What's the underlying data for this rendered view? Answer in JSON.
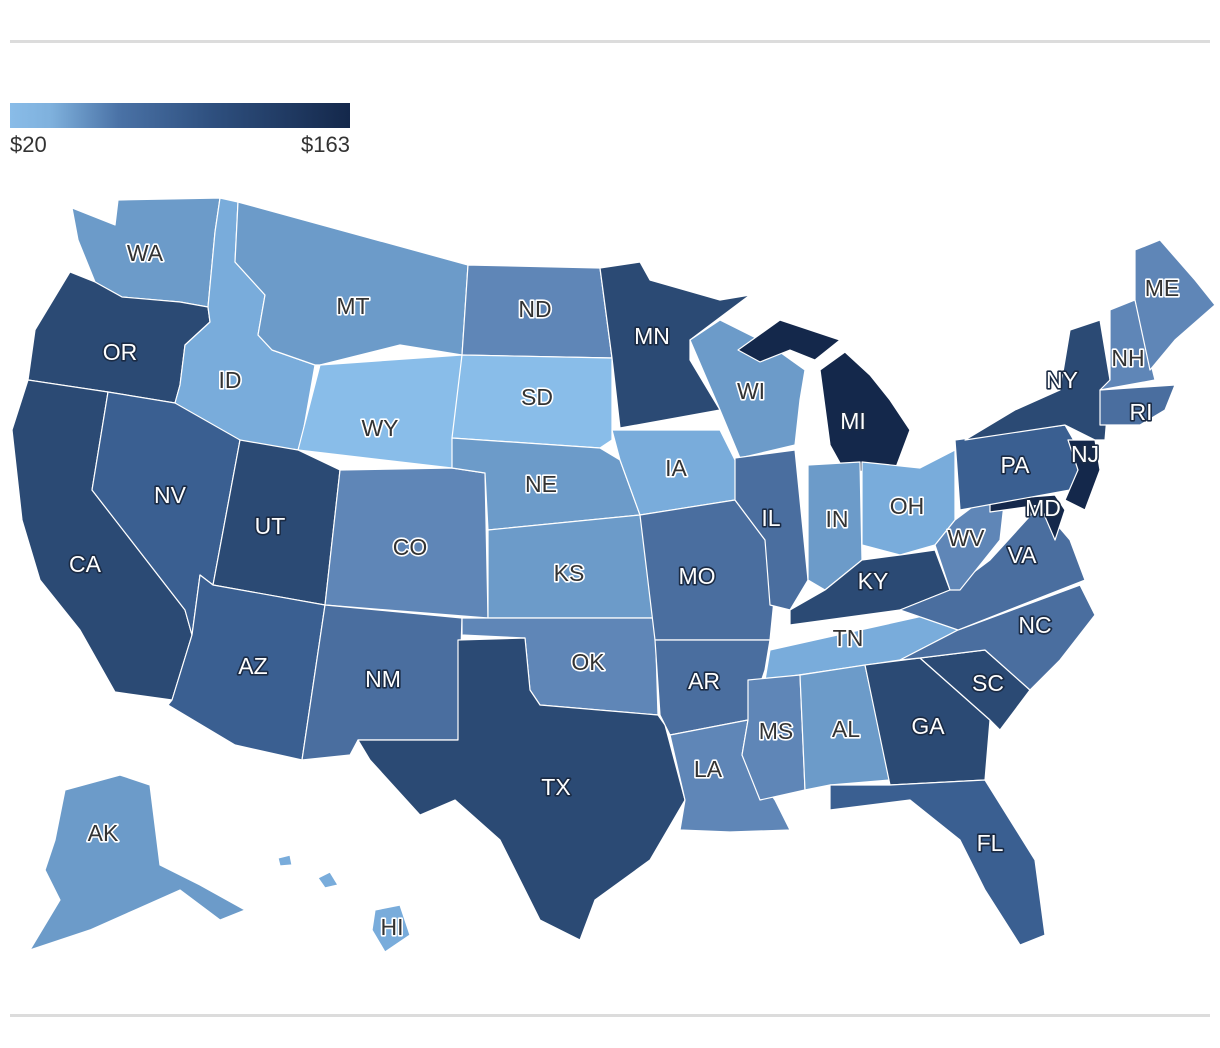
{
  "legend": {
    "min_label": "$20",
    "max_label": "$163"
  },
  "palette": {
    "darkest": "#14284b",
    "dark": "#2b4a74",
    "mid_dark": "#3a5f91",
    "mid": "#4a6e9f",
    "mid_light": "#5f86b7",
    "light": "#6c9bc9",
    "lighter": "#79acdb",
    "lightest": "#89bde9"
  },
  "chart_data": {
    "type": "heatmap",
    "value_range": [
      20,
      163
    ],
    "states": [
      {
        "abbr": "WA",
        "shade": "light"
      },
      {
        "abbr": "OR",
        "shade": "dark"
      },
      {
        "abbr": "CA",
        "shade": "dark"
      },
      {
        "abbr": "ID",
        "shade": "lighter"
      },
      {
        "abbr": "NV",
        "shade": "mid_dark"
      },
      {
        "abbr": "MT",
        "shade": "light"
      },
      {
        "abbr": "WY",
        "shade": "lightest"
      },
      {
        "abbr": "UT",
        "shade": "dark"
      },
      {
        "abbr": "AZ",
        "shade": "mid_dark"
      },
      {
        "abbr": "CO",
        "shade": "mid_light"
      },
      {
        "abbr": "NM",
        "shade": "mid"
      },
      {
        "abbr": "ND",
        "shade": "mid_light"
      },
      {
        "abbr": "SD",
        "shade": "lightest"
      },
      {
        "abbr": "NE",
        "shade": "light"
      },
      {
        "abbr": "KS",
        "shade": "light"
      },
      {
        "abbr": "OK",
        "shade": "mid_light"
      },
      {
        "abbr": "TX",
        "shade": "dark"
      },
      {
        "abbr": "MN",
        "shade": "dark"
      },
      {
        "abbr": "IA",
        "shade": "lighter"
      },
      {
        "abbr": "MO",
        "shade": "mid"
      },
      {
        "abbr": "AR",
        "shade": "mid"
      },
      {
        "abbr": "LA",
        "shade": "mid_light"
      },
      {
        "abbr": "WI",
        "shade": "light"
      },
      {
        "abbr": "IL",
        "shade": "mid"
      },
      {
        "abbr": "MI",
        "shade": "darkest"
      },
      {
        "abbr": "IN",
        "shade": "light"
      },
      {
        "abbr": "OH",
        "shade": "lighter"
      },
      {
        "abbr": "KY",
        "shade": "dark"
      },
      {
        "abbr": "TN",
        "shade": "lighter"
      },
      {
        "abbr": "MS",
        "shade": "mid_light"
      },
      {
        "abbr": "AL",
        "shade": "light"
      },
      {
        "abbr": "GA",
        "shade": "dark"
      },
      {
        "abbr": "FL",
        "shade": "mid_dark"
      },
      {
        "abbr": "SC",
        "shade": "dark"
      },
      {
        "abbr": "NC",
        "shade": "mid"
      },
      {
        "abbr": "VA",
        "shade": "mid"
      },
      {
        "abbr": "WV",
        "shade": "mid_light"
      },
      {
        "abbr": "MD",
        "shade": "darkest"
      },
      {
        "abbr": "PA",
        "shade": "mid_dark"
      },
      {
        "abbr": "NJ",
        "shade": "darkest"
      },
      {
        "abbr": "NY",
        "shade": "dark"
      },
      {
        "abbr": "RI",
        "shade": "mid"
      },
      {
        "abbr": "NH",
        "shade": "mid_light"
      },
      {
        "abbr": "ME",
        "shade": "mid_light"
      },
      {
        "abbr": "AK",
        "shade": "light"
      },
      {
        "abbr": "HI",
        "shade": "lighter"
      }
    ]
  }
}
